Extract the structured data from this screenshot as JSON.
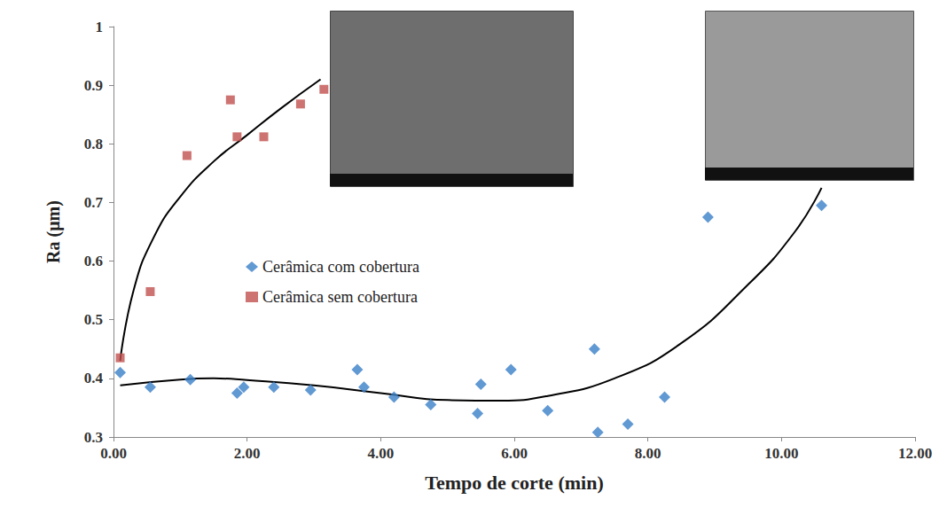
{
  "chart_data": {
    "type": "scatter",
    "x_label": "Tempo de corte (min)",
    "y_label": "Ra (μm)",
    "xlim": [
      0,
      12
    ],
    "xticks": [
      {
        "value": 0,
        "label": "0.00"
      },
      {
        "value": 2,
        "label": "2.00"
      },
      {
        "value": 4,
        "label": "4.00"
      },
      {
        "value": 6,
        "label": "6.00"
      },
      {
        "value": 8,
        "label": "8.00"
      },
      {
        "value": 10,
        "label": "10.00"
      },
      {
        "value": 12,
        "label": "12.00"
      }
    ],
    "ylim": [
      0.3,
      1
    ],
    "yticks": [
      0.3,
      0.4,
      0.5,
      0.6,
      0.7,
      0.8,
      0.9,
      1
    ],
    "grid": false,
    "legend": "left",
    "series": [
      {
        "name": "Cerâmica com cobertura",
        "color": "#3a7fc8",
        "marker": "diamond",
        "x": [
          0.1,
          0.55,
          1.15,
          1.85,
          1.95,
          2.4,
          2.95,
          3.65,
          3.75,
          4.2,
          4.75,
          5.45,
          5.5,
          5.95,
          6.5,
          7.2,
          7.25,
          7.7,
          8.25,
          8.9,
          10.6
        ],
        "values": [
          0.41,
          0.385,
          0.398,
          0.375,
          0.385,
          0.385,
          0.38,
          0.415,
          0.385,
          0.368,
          0.355,
          0.34,
          0.39,
          0.415,
          0.345,
          0.45,
          0.308,
          0.322,
          0.368,
          0.675,
          0.695
        ],
        "trend": {
          "x": [
            0.1,
            1,
            1.5,
            2,
            3,
            4,
            5,
            5.8,
            6.5,
            7.5,
            8.5,
            9.5,
            10.2,
            10.6
          ],
          "values": [
            0.388,
            0.398,
            0.4,
            0.397,
            0.388,
            0.375,
            0.363,
            0.362,
            0.37,
            0.4,
            0.46,
            0.56,
            0.65,
            0.725
          ]
        }
      },
      {
        "name": "Cerâmica sem cobertura",
        "color": "#c0504d",
        "marker": "square",
        "x": [
          0.1,
          0.55,
          1.1,
          1.75,
          1.85,
          2.25,
          2.8,
          3.15
        ],
        "values": [
          0.435,
          0.548,
          0.78,
          0.875,
          0.812,
          0.812,
          0.868,
          0.893
        ],
        "trend": {
          "x": [
            0.1,
            0.3,
            0.6,
            1,
            1.5,
            2,
            2.5,
            3.1
          ],
          "values": [
            0.43,
            0.55,
            0.64,
            0.71,
            0.77,
            0.815,
            0.86,
            0.91
          ]
        }
      }
    ]
  }
}
